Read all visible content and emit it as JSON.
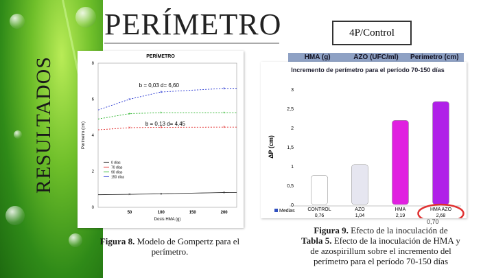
{
  "slide": {
    "side_title": "RESULTADOS",
    "title": "PERÍMETRO",
    "badge": "4P/Control"
  },
  "gompertz_chart": {
    "caption_bold": "Figura 8.",
    "caption_text": "Modelo de Gompertz para el perímetro."
  },
  "bar_section": {
    "table_headers": [
      "HMA (g)",
      "AZO (UFC/ml)",
      "Perimetro (cm)"
    ],
    "caption_bold": "Figura 9.",
    "caption_line1": "Efecto de la inoculación de",
    "caption_line2_a": "Tabla 5.",
    "caption_line2_b": "Efecto de la inoculación de HMA y",
    "caption_line3": "de azospirillum sobre el incremento del",
    "caption_line4": "perímetro para el período 70-150 días",
    "stray_label": "0,70"
  },
  "chart_data": [
    {
      "type": "line",
      "title": "PERÍMETRO",
      "xlabel": "Dosis HMA (g)",
      "ylabel": "Perímetro (cm)",
      "x": [
        0,
        50,
        100,
        200
      ],
      "xticks": [
        50,
        100,
        150,
        200
      ],
      "ylim": [
        0,
        8
      ],
      "yticks": [
        0,
        2,
        4,
        6,
        8
      ],
      "legend_position": "bottom-left",
      "series": [
        {
          "name": "0 días",
          "color": "#333333",
          "values": [
            0.7,
            0.72,
            0.75,
            0.82
          ]
        },
        {
          "name": "70 días",
          "color": "#e02020",
          "values": [
            4.3,
            4.42,
            4.44,
            4.45
          ]
        },
        {
          "name": "90 días",
          "color": "#20b020",
          "values": [
            4.9,
            5.2,
            5.25,
            5.25
          ]
        },
        {
          "name": "150 días",
          "color": "#2030d0",
          "values": [
            5.4,
            6.0,
            6.4,
            6.6
          ]
        }
      ],
      "annotations": [
        "b = 0,03  d= 6,60",
        "b = 0,13  d= 4,45"
      ]
    },
    {
      "type": "bar",
      "title": "Incremento de perímetro para el período 70-150 días",
      "ylabel": "ΔP (cm)",
      "ylim": [
        0,
        3
      ],
      "yticks": [
        "0",
        "0,5",
        "1",
        "1,5",
        "2",
        "2,5",
        "3"
      ],
      "categories": [
        "CONTROL",
        "AZO",
        "HMA",
        "HMA AZO"
      ],
      "values": [
        0.76,
        1.04,
        2.19,
        2.68
      ],
      "value_labels": [
        "0,76",
        "1,04",
        "2,19",
        "2,68"
      ],
      "colors": [
        "#ffffff",
        "#e6e6f0",
        "#e020e0",
        "#b020e8"
      ],
      "legend": "Medias",
      "highlight": "HMA AZO"
    }
  ]
}
